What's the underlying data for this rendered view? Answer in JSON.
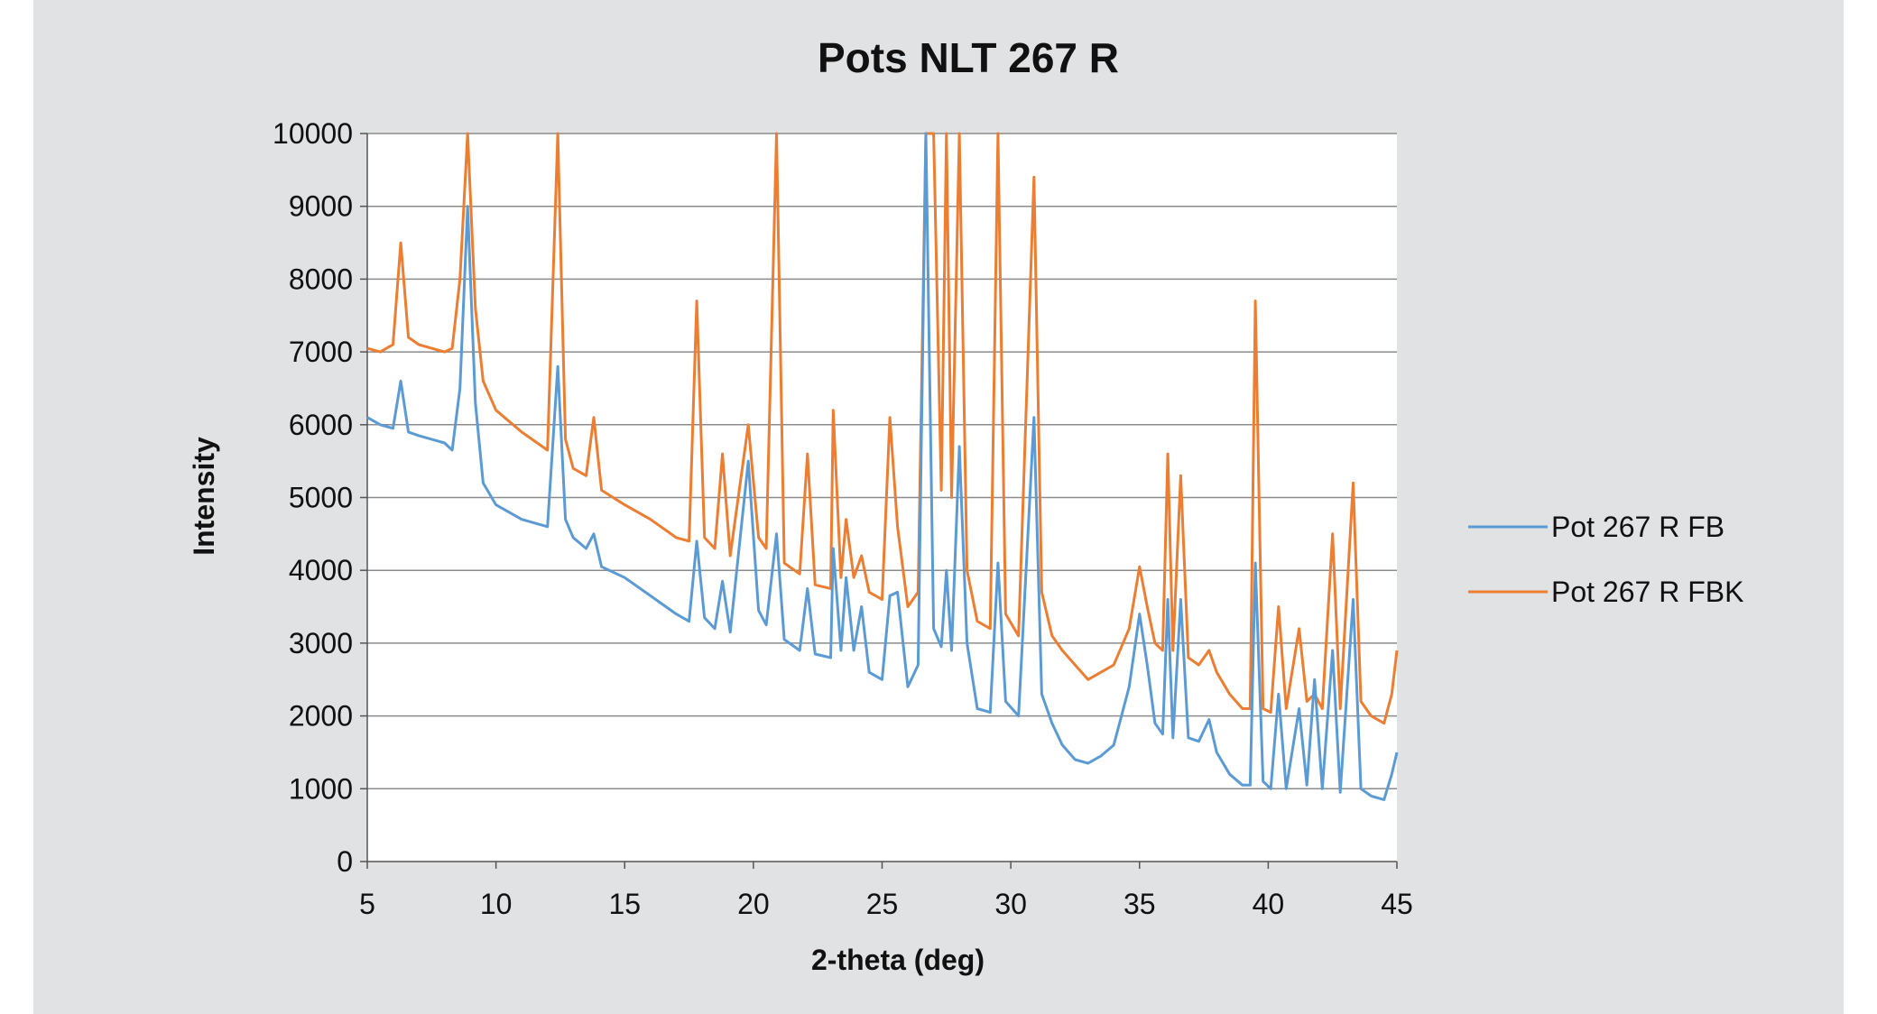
{
  "chart_data": {
    "type": "line",
    "title": "Pots NLT 267 R",
    "xlabel": "2-theta (deg)",
    "ylabel": "Intensity",
    "xlim": [
      5,
      45
    ],
    "ylim": [
      0,
      10000
    ],
    "x_ticks": [
      "5",
      "10",
      "15",
      "20",
      "25",
      "30",
      "35",
      "40",
      "45"
    ],
    "y_ticks": [
      "0",
      "1000",
      "2000",
      "3000",
      "4000",
      "5000",
      "6000",
      "7000",
      "8000",
      "9000",
      "10000"
    ],
    "grid": "horizontal",
    "legend": "right",
    "colors": {
      "fb": "#5b9bd5",
      "fbk": "#ed7d31",
      "background": "#e0e2e4",
      "plot_area": "#ffffff",
      "gridline": "#8c8c8c"
    },
    "series": [
      {
        "name": "Pot 267 R FB",
        "color": "#5b9bd5",
        "points": [
          [
            5.0,
            6100
          ],
          [
            5.5,
            6000
          ],
          [
            6.0,
            5950
          ],
          [
            6.3,
            6600
          ],
          [
            6.6,
            5900
          ],
          [
            7.0,
            5850
          ],
          [
            7.5,
            5800
          ],
          [
            8.0,
            5750
          ],
          [
            8.3,
            5650
          ],
          [
            8.6,
            6500
          ],
          [
            8.9,
            9000
          ],
          [
            9.2,
            6300
          ],
          [
            9.5,
            5200
          ],
          [
            10.0,
            4900
          ],
          [
            11.0,
            4700
          ],
          [
            12.0,
            4600
          ],
          [
            12.4,
            6800
          ],
          [
            12.7,
            4700
          ],
          [
            13.0,
            4450
          ],
          [
            13.5,
            4300
          ],
          [
            13.8,
            4500
          ],
          [
            14.1,
            4050
          ],
          [
            15.0,
            3900
          ],
          [
            16.0,
            3650
          ],
          [
            17.0,
            3400
          ],
          [
            17.5,
            3300
          ],
          [
            17.8,
            4400
          ],
          [
            18.1,
            3350
          ],
          [
            18.5,
            3200
          ],
          [
            18.8,
            3850
          ],
          [
            19.1,
            3150
          ],
          [
            19.8,
            5500
          ],
          [
            20.2,
            3450
          ],
          [
            20.5,
            3250
          ],
          [
            20.9,
            4500
          ],
          [
            21.2,
            3050
          ],
          [
            21.8,
            2900
          ],
          [
            22.1,
            3750
          ],
          [
            22.4,
            2850
          ],
          [
            23.0,
            2800
          ],
          [
            23.1,
            4300
          ],
          [
            23.4,
            2900
          ],
          [
            23.6,
            3900
          ],
          [
            23.9,
            2900
          ],
          [
            24.2,
            3500
          ],
          [
            24.5,
            2600
          ],
          [
            25.0,
            2500
          ],
          [
            25.3,
            3650
          ],
          [
            25.6,
            3700
          ],
          [
            26.0,
            2400
          ],
          [
            26.4,
            2700
          ],
          [
            26.7,
            10000
          ],
          [
            27.0,
            3200
          ],
          [
            27.3,
            2950
          ],
          [
            27.5,
            4000
          ],
          [
            27.7,
            2900
          ],
          [
            28.0,
            5700
          ],
          [
            28.3,
            3000
          ],
          [
            28.7,
            2100
          ],
          [
            29.2,
            2050
          ],
          [
            29.5,
            4100
          ],
          [
            29.8,
            2200
          ],
          [
            30.3,
            2000
          ],
          [
            30.9,
            6100
          ],
          [
            31.2,
            2300
          ],
          [
            31.6,
            1900
          ],
          [
            32.0,
            1600
          ],
          [
            32.5,
            1400
          ],
          [
            33.0,
            1350
          ],
          [
            33.5,
            1450
          ],
          [
            34.0,
            1600
          ],
          [
            34.6,
            2400
          ],
          [
            35.0,
            3400
          ],
          [
            35.3,
            2700
          ],
          [
            35.6,
            1900
          ],
          [
            35.9,
            1750
          ],
          [
            36.1,
            3600
          ],
          [
            36.3,
            1700
          ],
          [
            36.6,
            3600
          ],
          [
            36.9,
            1700
          ],
          [
            37.3,
            1650
          ],
          [
            37.7,
            1950
          ],
          [
            38.0,
            1500
          ],
          [
            38.5,
            1200
          ],
          [
            39.0,
            1050
          ],
          [
            39.3,
            1050
          ],
          [
            39.5,
            4100
          ],
          [
            39.8,
            1100
          ],
          [
            40.1,
            1000
          ],
          [
            40.4,
            2300
          ],
          [
            40.7,
            1000
          ],
          [
            41.2,
            2100
          ],
          [
            41.5,
            1050
          ],
          [
            41.8,
            2500
          ],
          [
            42.1,
            1000
          ],
          [
            42.5,
            2900
          ],
          [
            42.8,
            950
          ],
          [
            43.3,
            3600
          ],
          [
            43.6,
            1000
          ],
          [
            44.0,
            900
          ],
          [
            44.5,
            850
          ],
          [
            44.8,
            1200
          ],
          [
            45.0,
            1500
          ]
        ]
      },
      {
        "name": "Pot 267 R FBK",
        "color": "#ed7d31",
        "points": [
          [
            5.0,
            7050
          ],
          [
            5.5,
            7000
          ],
          [
            6.0,
            7100
          ],
          [
            6.3,
            8500
          ],
          [
            6.6,
            7200
          ],
          [
            7.0,
            7100
          ],
          [
            7.5,
            7050
          ],
          [
            8.0,
            7000
          ],
          [
            8.3,
            7050
          ],
          [
            8.6,
            8000
          ],
          [
            8.9,
            10000
          ],
          [
            9.2,
            7600
          ],
          [
            9.5,
            6600
          ],
          [
            10.0,
            6200
          ],
          [
            11.0,
            5900
          ],
          [
            12.0,
            5650
          ],
          [
            12.4,
            10000
          ],
          [
            12.7,
            5800
          ],
          [
            13.0,
            5400
          ],
          [
            13.5,
            5300
          ],
          [
            13.8,
            6100
          ],
          [
            14.1,
            5100
          ],
          [
            15.0,
            4900
          ],
          [
            16.0,
            4700
          ],
          [
            17.0,
            4450
          ],
          [
            17.5,
            4400
          ],
          [
            17.8,
            7700
          ],
          [
            18.1,
            4450
          ],
          [
            18.5,
            4300
          ],
          [
            18.8,
            5600
          ],
          [
            19.1,
            4200
          ],
          [
            19.8,
            6000
          ],
          [
            20.2,
            4450
          ],
          [
            20.5,
            4300
          ],
          [
            20.9,
            10000
          ],
          [
            21.2,
            4100
          ],
          [
            21.8,
            3950
          ],
          [
            22.1,
            5600
          ],
          [
            22.4,
            3800
          ],
          [
            23.0,
            3750
          ],
          [
            23.1,
            6200
          ],
          [
            23.4,
            3900
          ],
          [
            23.6,
            4700
          ],
          [
            23.9,
            3900
          ],
          [
            24.2,
            4200
          ],
          [
            24.5,
            3700
          ],
          [
            25.0,
            3600
          ],
          [
            25.3,
            6100
          ],
          [
            25.6,
            4600
          ],
          [
            26.0,
            3500
          ],
          [
            26.4,
            3700
          ],
          [
            26.7,
            10000
          ],
          [
            27.0,
            10000
          ],
          [
            27.3,
            5100
          ],
          [
            27.5,
            10000
          ],
          [
            27.7,
            5000
          ],
          [
            28.0,
            10000
          ],
          [
            28.3,
            4000
          ],
          [
            28.7,
            3300
          ],
          [
            29.2,
            3200
          ],
          [
            29.5,
            10000
          ],
          [
            29.8,
            3400
          ],
          [
            30.3,
            3100
          ],
          [
            30.9,
            9400
          ],
          [
            31.2,
            3700
          ],
          [
            31.6,
            3100
          ],
          [
            32.0,
            2900
          ],
          [
            32.5,
            2700
          ],
          [
            33.0,
            2500
          ],
          [
            33.5,
            2600
          ],
          [
            34.0,
            2700
          ],
          [
            34.6,
            3200
          ],
          [
            35.0,
            4050
          ],
          [
            35.3,
            3500
          ],
          [
            35.6,
            3000
          ],
          [
            35.9,
            2900
          ],
          [
            36.1,
            5600
          ],
          [
            36.3,
            2900
          ],
          [
            36.6,
            5300
          ],
          [
            36.9,
            2800
          ],
          [
            37.3,
            2700
          ],
          [
            37.7,
            2900
          ],
          [
            38.0,
            2600
          ],
          [
            38.5,
            2300
          ],
          [
            39.0,
            2100
          ],
          [
            39.3,
            2100
          ],
          [
            39.5,
            7700
          ],
          [
            39.8,
            2100
          ],
          [
            40.1,
            2050
          ],
          [
            40.4,
            3500
          ],
          [
            40.7,
            2100
          ],
          [
            41.2,
            3200
          ],
          [
            41.5,
            2200
          ],
          [
            41.8,
            2300
          ],
          [
            42.1,
            2100
          ],
          [
            42.5,
            4500
          ],
          [
            42.8,
            2100
          ],
          [
            43.3,
            5200
          ],
          [
            43.6,
            2200
          ],
          [
            44.0,
            2000
          ],
          [
            44.5,
            1900
          ],
          [
            44.8,
            2300
          ],
          [
            45.0,
            2900
          ]
        ]
      }
    ]
  }
}
